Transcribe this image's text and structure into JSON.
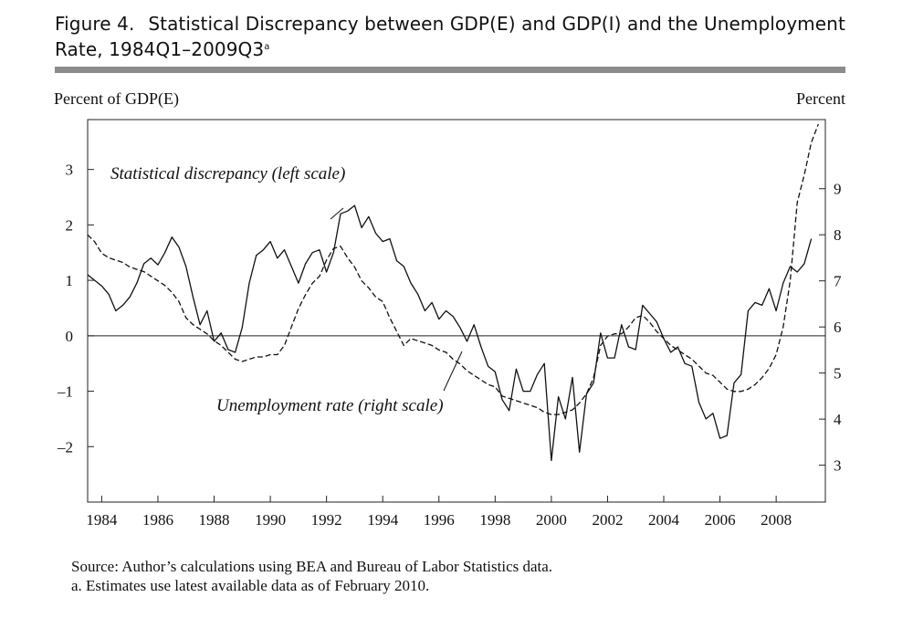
{
  "figure": {
    "label": "Figure 4.",
    "title_line1": "Statistical Discrepancy between GDP(E) and GDP(I) and the Unemployment",
    "title_line2": "Rate, 1984Q1–2009Q3",
    "title_superscript": "a"
  },
  "chart_data": {
    "type": "line",
    "title": "Statistical Discrepancy between GDP(E) and GDP(I) and the Unemployment Rate, 1984Q1–2009Q3",
    "left_axis_label": "Percent of GDP(E)",
    "right_axis_label": "Percent",
    "left_ylim": [
      -3,
      3.9
    ],
    "right_ylim": [
      2.2,
      10.5
    ],
    "xlim": [
      1983.5,
      2009.75
    ],
    "x_ticks": [
      "1984",
      "1986",
      "1988",
      "1990",
      "1992",
      "1994",
      "1996",
      "1998",
      "2000",
      "2002",
      "2004",
      "2006",
      "2008"
    ],
    "left_ticks": [
      "3",
      "2",
      "1",
      "0",
      "–1",
      "–2"
    ],
    "right_ticks": [
      "9",
      "8",
      "7",
      "6",
      "5",
      "4",
      "3"
    ],
    "zero_line": 0,
    "series": [
      {
        "name": "Statistical discrepancy (left scale)",
        "axis": "left",
        "style": "solid",
        "points": [
          [
            1983.5,
            1.1
          ],
          [
            1983.75,
            1.0
          ],
          [
            1984,
            0.9
          ],
          [
            1984.25,
            0.75
          ],
          [
            1984.5,
            0.45
          ],
          [
            1984.75,
            0.55
          ],
          [
            1985,
            0.7
          ],
          [
            1985.25,
            0.95
          ],
          [
            1985.5,
            1.3
          ],
          [
            1985.75,
            1.4
          ],
          [
            1986,
            1.28
          ],
          [
            1986.25,
            1.5
          ],
          [
            1986.5,
            1.78
          ],
          [
            1986.75,
            1.6
          ],
          [
            1987,
            1.25
          ],
          [
            1987.25,
            0.7
          ],
          [
            1987.5,
            0.2
          ],
          [
            1987.75,
            0.45
          ],
          [
            1988,
            -0.1
          ],
          [
            1988.25,
            0.05
          ],
          [
            1988.5,
            -0.25
          ],
          [
            1988.75,
            -0.3
          ],
          [
            1989,
            0.15
          ],
          [
            1989.25,
            0.95
          ],
          [
            1989.5,
            1.45
          ],
          [
            1989.75,
            1.55
          ],
          [
            1990,
            1.7
          ],
          [
            1990.25,
            1.4
          ],
          [
            1990.5,
            1.55
          ],
          [
            1990.75,
            1.25
          ],
          [
            1991,
            0.95
          ],
          [
            1991.25,
            1.3
          ],
          [
            1991.5,
            1.5
          ],
          [
            1991.75,
            1.55
          ],
          [
            1992,
            1.15
          ],
          [
            1992.25,
            1.5
          ],
          [
            1992.5,
            2.2
          ],
          [
            1992.75,
            2.25
          ],
          [
            1993,
            2.35
          ],
          [
            1993.25,
            1.95
          ],
          [
            1993.5,
            2.15
          ],
          [
            1993.75,
            1.85
          ],
          [
            1994,
            1.7
          ],
          [
            1994.25,
            1.75
          ],
          [
            1994.5,
            1.35
          ],
          [
            1994.75,
            1.25
          ],
          [
            1995,
            0.95
          ],
          [
            1995.25,
            0.75
          ],
          [
            1995.5,
            0.45
          ],
          [
            1995.75,
            0.6
          ],
          [
            1996,
            0.3
          ],
          [
            1996.25,
            0.45
          ],
          [
            1996.5,
            0.35
          ],
          [
            1996.75,
            0.15
          ],
          [
            1997,
            -0.1
          ],
          [
            1997.25,
            0.2
          ],
          [
            1997.5,
            -0.2
          ],
          [
            1997.75,
            -0.55
          ],
          [
            1998,
            -0.65
          ],
          [
            1998.25,
            -1.15
          ],
          [
            1998.5,
            -1.35
          ],
          [
            1998.75,
            -0.6
          ],
          [
            1999,
            -1.0
          ],
          [
            1999.25,
            -1.0
          ],
          [
            1999.5,
            -0.7
          ],
          [
            1999.75,
            -0.5
          ],
          [
            2000,
            -2.25
          ],
          [
            2000.25,
            -1.1
          ],
          [
            2000.5,
            -1.5
          ],
          [
            2000.75,
            -0.75
          ],
          [
            2001,
            -2.1
          ],
          [
            2001.25,
            -1.05
          ],
          [
            2001.5,
            -0.85
          ],
          [
            2001.75,
            0.05
          ],
          [
            2002,
            -0.4
          ],
          [
            2002.25,
            -0.4
          ],
          [
            2002.5,
            0.2
          ],
          [
            2002.75,
            -0.2
          ],
          [
            2003,
            -0.25
          ],
          [
            2003.25,
            0.55
          ],
          [
            2003.5,
            0.4
          ],
          [
            2003.75,
            0.25
          ],
          [
            2004,
            -0.05
          ],
          [
            2004.25,
            -0.3
          ],
          [
            2004.5,
            -0.2
          ],
          [
            2004.75,
            -0.5
          ],
          [
            2005,
            -0.55
          ],
          [
            2005.25,
            -1.2
          ],
          [
            2005.5,
            -1.5
          ],
          [
            2005.75,
            -1.4
          ],
          [
            2006,
            -1.85
          ],
          [
            2006.25,
            -1.8
          ],
          [
            2006.5,
            -0.85
          ],
          [
            2006.75,
            -0.7
          ],
          [
            2007,
            0.45
          ],
          [
            2007.25,
            0.6
          ],
          [
            2007.5,
            0.55
          ],
          [
            2007.75,
            0.85
          ],
          [
            2008,
            0.45
          ],
          [
            2008.25,
            0.95
          ],
          [
            2008.5,
            1.25
          ],
          [
            2008.75,
            1.15
          ],
          [
            2009,
            1.3
          ],
          [
            2009.25,
            1.75
          ]
        ]
      },
      {
        "name": "Unemployment rate (right scale)",
        "axis": "right",
        "style": "dashed",
        "points": [
          [
            1983.5,
            8.0
          ],
          [
            1983.75,
            7.85
          ],
          [
            1984,
            7.6
          ],
          [
            1984.25,
            7.5
          ],
          [
            1984.5,
            7.45
          ],
          [
            1984.75,
            7.4
          ],
          [
            1985,
            7.3
          ],
          [
            1985.25,
            7.25
          ],
          [
            1985.5,
            7.2
          ],
          [
            1985.75,
            7.1
          ],
          [
            1986,
            7.0
          ],
          [
            1986.25,
            6.9
          ],
          [
            1986.5,
            6.75
          ],
          [
            1986.75,
            6.55
          ],
          [
            1987,
            6.2
          ],
          [
            1987.25,
            6.05
          ],
          [
            1987.5,
            5.95
          ],
          [
            1987.75,
            5.85
          ],
          [
            1988,
            5.7
          ],
          [
            1988.25,
            5.6
          ],
          [
            1988.5,
            5.45
          ],
          [
            1988.75,
            5.3
          ],
          [
            1989,
            5.25
          ],
          [
            1989.25,
            5.3
          ],
          [
            1989.5,
            5.35
          ],
          [
            1989.75,
            5.35
          ],
          [
            1990,
            5.4
          ],
          [
            1990.25,
            5.4
          ],
          [
            1990.5,
            5.6
          ],
          [
            1990.75,
            6.0
          ],
          [
            1991,
            6.4
          ],
          [
            1991.25,
            6.7
          ],
          [
            1991.5,
            6.95
          ],
          [
            1991.75,
            7.1
          ],
          [
            1992,
            7.45
          ],
          [
            1992.25,
            7.7
          ],
          [
            1992.5,
            7.75
          ],
          [
            1992.75,
            7.5
          ],
          [
            1993,
            7.3
          ],
          [
            1993.25,
            7.0
          ],
          [
            1993.5,
            6.85
          ],
          [
            1993.75,
            6.65
          ],
          [
            1994,
            6.55
          ],
          [
            1994.25,
            6.2
          ],
          [
            1994.5,
            5.9
          ],
          [
            1994.75,
            5.6
          ],
          [
            1995,
            5.75
          ],
          [
            1995.25,
            5.7
          ],
          [
            1995.5,
            5.65
          ],
          [
            1995.75,
            5.6
          ],
          [
            1996,
            5.5
          ],
          [
            1996.25,
            5.45
          ],
          [
            1996.5,
            5.3
          ],
          [
            1996.75,
            5.2
          ],
          [
            1997,
            5.05
          ],
          [
            1997.25,
            4.95
          ],
          [
            1997.5,
            4.85
          ],
          [
            1997.75,
            4.75
          ],
          [
            1998,
            4.7
          ],
          [
            1998.25,
            4.5
          ],
          [
            1998.5,
            4.45
          ],
          [
            1998.75,
            4.4
          ],
          [
            1999,
            4.35
          ],
          [
            1999.25,
            4.3
          ],
          [
            1999.5,
            4.25
          ],
          [
            1999.75,
            4.15
          ],
          [
            2000,
            4.1
          ],
          [
            2000.25,
            4.1
          ],
          [
            2000.5,
            4.15
          ],
          [
            2000.75,
            4.2
          ],
          [
            2001,
            4.35
          ],
          [
            2001.25,
            4.55
          ],
          [
            2001.5,
            4.9
          ],
          [
            2001.75,
            5.6
          ],
          [
            2002,
            5.8
          ],
          [
            2002.25,
            5.85
          ],
          [
            2002.5,
            5.85
          ],
          [
            2002.75,
            6.0
          ],
          [
            2003,
            6.2
          ],
          [
            2003.25,
            6.25
          ],
          [
            2003.5,
            6.1
          ],
          [
            2003.75,
            5.9
          ],
          [
            2004,
            5.75
          ],
          [
            2004.25,
            5.6
          ],
          [
            2004.5,
            5.5
          ],
          [
            2004.75,
            5.4
          ],
          [
            2005,
            5.3
          ],
          [
            2005.25,
            5.15
          ],
          [
            2005.5,
            5.0
          ],
          [
            2005.75,
            4.95
          ],
          [
            2006,
            4.8
          ],
          [
            2006.25,
            4.65
          ],
          [
            2006.5,
            4.6
          ],
          [
            2006.75,
            4.6
          ],
          [
            2007,
            4.65
          ],
          [
            2007.25,
            4.75
          ],
          [
            2007.5,
            4.9
          ],
          [
            2007.75,
            5.1
          ],
          [
            2008,
            5.4
          ],
          [
            2008.25,
            6.0
          ],
          [
            2008.5,
            7.0
          ],
          [
            2008.75,
            8.7
          ],
          [
            2009,
            9.3
          ],
          [
            2009.25,
            10.0
          ],
          [
            2009.5,
            10.4
          ]
        ]
      }
    ],
    "annotations": [
      {
        "text": "Statistical discrepancy (left scale)",
        "series": 0
      },
      {
        "text": "Unemployment rate (right scale)",
        "series": 1
      }
    ]
  },
  "source_note": "Source: Author’s calculations using BEA and Bureau of Labor Statistics data.",
  "footnote": "a. Estimates use latest available data as of February 2010."
}
